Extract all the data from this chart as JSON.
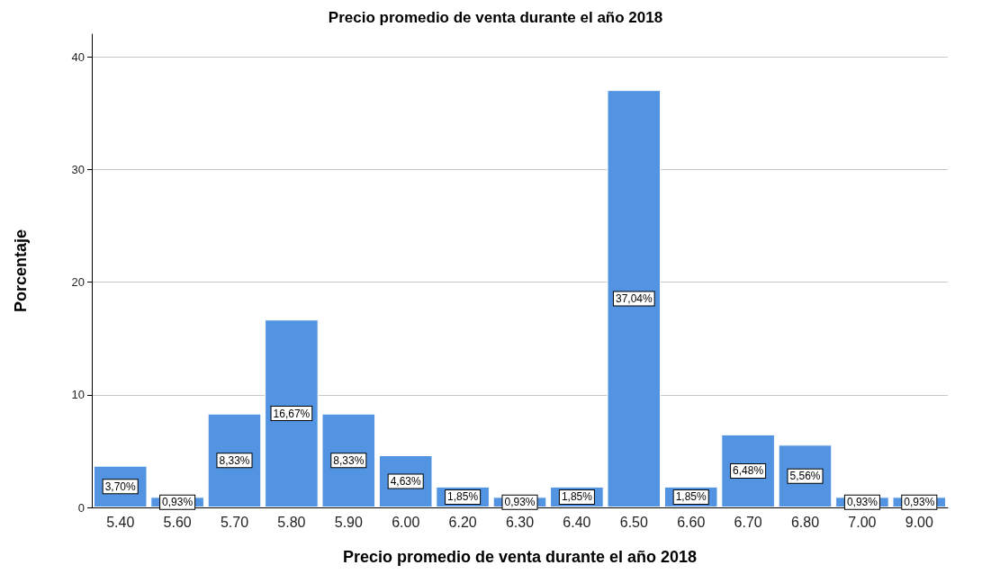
{
  "chart_data": {
    "type": "bar",
    "title": "Precio promedio de venta durante el año 2018",
    "xlabel": "Precio promedio de venta durante el año 2018",
    "ylabel": "Porcentaje",
    "categories": [
      "5.40",
      "5.60",
      "5.70",
      "5.80",
      "5.90",
      "6.00",
      "6.20",
      "6.30",
      "6.40",
      "6.50",
      "6.60",
      "6.70",
      "6.80",
      "7.00",
      "9.00"
    ],
    "values": [
      3.7,
      0.93,
      8.33,
      16.67,
      8.33,
      4.63,
      1.85,
      0.93,
      1.85,
      37.04,
      1.85,
      6.48,
      5.56,
      0.93,
      0.93
    ],
    "value_labels": [
      "3,70%",
      "0,93%",
      "8,33%",
      "16,67%",
      "8,33%",
      "4,63%",
      "1,85%",
      "0,93%",
      "1,85%",
      "37,04%",
      "1,85%",
      "6,48%",
      "5,56%",
      "0,93%",
      "0,93%"
    ],
    "color": "#5294e2",
    "ylim": [
      0,
      42
    ],
    "yticks": [
      0,
      10,
      20,
      30,
      40
    ],
    "grid": "y"
  }
}
